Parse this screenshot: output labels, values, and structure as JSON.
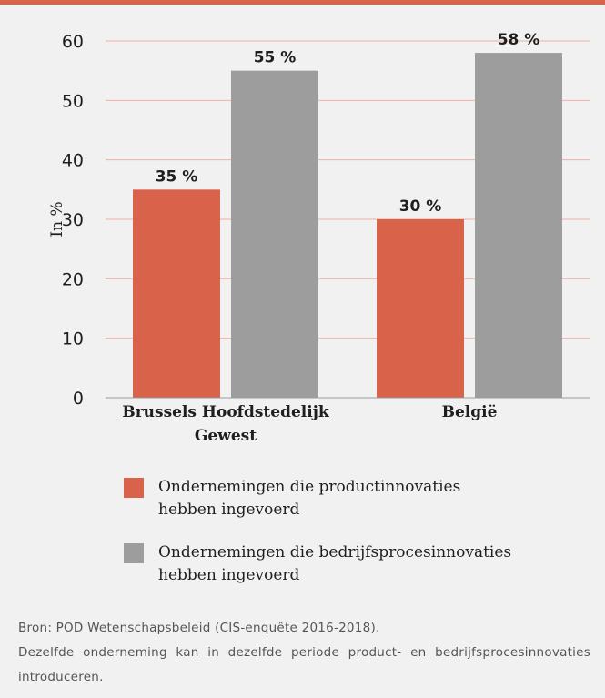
{
  "chart_data": {
    "type": "bar",
    "ylabel": "In %",
    "ylim": [
      0,
      60
    ],
    "yticks": [
      "0",
      "10",
      "20",
      "30",
      "40",
      "50",
      "60"
    ],
    "categories": [
      "Brussels Hoofdstedelijk Gewest",
      "België"
    ],
    "category_lines": [
      [
        "Brussels Hoofdstedelijk",
        "Gewest"
      ],
      [
        "België"
      ]
    ],
    "series": [
      {
        "name": "Ondernemingen die productinnovaties hebben ingevoerd",
        "legend_lines": [
          "Ondernemingen die productinnovaties",
          "hebben ingevoerd"
        ],
        "values": [
          35,
          30
        ],
        "labels": [
          "35 %",
          "30 %"
        ],
        "color": "#d9624b"
      },
      {
        "name": "Ondernemingen die bedrijfsprocesinnovaties hebben ingevoerd",
        "legend_lines": [
          "Ondernemingen die bedrijfsprocesinnovaties",
          "hebben ingevoerd"
        ],
        "values": [
          55,
          58
        ],
        "labels": [
          "55 %",
          "58 %"
        ],
        "color": "#9d9d9d"
      }
    ],
    "grid": true,
    "legend": "bottom",
    "colors": {
      "gridline": "#f0b0a4",
      "axis": "#9a9a9a",
      "top_rule": "#d9624b",
      "background": "#f1f1f1"
    }
  },
  "source": {
    "line": "Bron: POD Wetenschapsbeleid (CIS-enquête 2016-2018).",
    "note": "Dezelfde onderneming kan in dezelfde periode product- en bedrijfsprocesinnovaties introduceren."
  }
}
